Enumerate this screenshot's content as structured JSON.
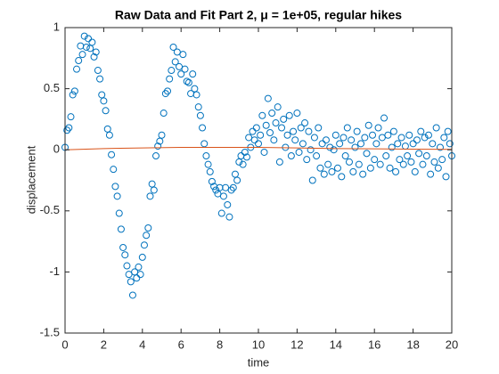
{
  "chart_data": {
    "type": "scatter",
    "title": "Raw Data and Fit Part 2, μ = 1e+05, regular hikes",
    "x_label": "time",
    "y_label": "displacement",
    "xlim": [
      0,
      20
    ],
    "ylim": [
      -1.5,
      1
    ],
    "xticks": [
      0,
      2,
      4,
      6,
      8,
      10,
      12,
      14,
      16,
      18,
      20
    ],
    "yticks": [
      -1.5,
      -1,
      -0.5,
      0,
      0.5,
      1
    ],
    "box": true,
    "series": [
      {
        "mode": "markers",
        "color": "#0072bd",
        "x": [
          0,
          0.1,
          0.2,
          0.3,
          0.4,
          0.5,
          0.6,
          0.7,
          0.8,
          0.9,
          1,
          1.1,
          1.2,
          1.3,
          1.4,
          1.5,
          1.6,
          1.7,
          1.8,
          1.9,
          2,
          2.1,
          2.2,
          2.3,
          2.4,
          2.5,
          2.6,
          2.7,
          2.8,
          2.9,
          3,
          3.1,
          3.2,
          3.3,
          3.4,
          3.5,
          3.6,
          3.7,
          3.8,
          3.9,
          4,
          4.1,
          4.2,
          4.3,
          4.4,
          4.5,
          4.6,
          4.7,
          4.8,
          4.9,
          5,
          5.1,
          5.2,
          5.3,
          5.4,
          5.5,
          5.6,
          5.7,
          5.8,
          5.9,
          6,
          6.1,
          6.2,
          6.3,
          6.4,
          6.5,
          6.6,
          6.7,
          6.8,
          6.9,
          7,
          7.1,
          7.2,
          7.3,
          7.4,
          7.5,
          7.6,
          7.7,
          7.8,
          7.9,
          8,
          8.1,
          8.2,
          8.3,
          8.4,
          8.5,
          8.6,
          8.7,
          8.8,
          8.9,
          9,
          9.1,
          9.2,
          9.3,
          9.4,
          9.5,
          9.6,
          9.7,
          9.8,
          9.9,
          10,
          10.1,
          10.2,
          10.3,
          10.4,
          10.5,
          10.6,
          10.7,
          10.8,
          10.9,
          11,
          11.1,
          11.2,
          11.3,
          11.4,
          11.5,
          11.6,
          11.7,
          11.8,
          11.9,
          12,
          12.1,
          12.2,
          12.3,
          12.4,
          12.5,
          12.6,
          12.7,
          12.8,
          12.9,
          13,
          13.1,
          13.2,
          13.3,
          13.4,
          13.5,
          13.6,
          13.7,
          13.8,
          13.9,
          14,
          14.1,
          14.2,
          14.3,
          14.4,
          14.5,
          14.6,
          14.7,
          14.8,
          14.9,
          15,
          15.1,
          15.2,
          15.3,
          15.4,
          15.5,
          15.6,
          15.7,
          15.8,
          15.9,
          16,
          16.1,
          16.2,
          16.3,
          16.4,
          16.5,
          16.6,
          16.7,
          16.8,
          16.9,
          17,
          17.1,
          17.2,
          17.3,
          17.4,
          17.5,
          17.6,
          17.7,
          17.8,
          17.9,
          18,
          18.1,
          18.2,
          18.3,
          18.4,
          18.5,
          18.6,
          18.7,
          18.8,
          18.9,
          19,
          19.1,
          19.2,
          19.3,
          19.4,
          19.5,
          19.6,
          19.7,
          19.8,
          19.9,
          20
        ],
        "values": [
          0.02,
          0.16,
          0.18,
          0.27,
          0.45,
          0.48,
          0.66,
          0.73,
          0.85,
          0.78,
          0.93,
          0.84,
          0.91,
          0.83,
          0.88,
          0.76,
          0.8,
          0.65,
          0.58,
          0.45,
          0.4,
          0.32,
          0.17,
          0.12,
          -0.04,
          -0.16,
          -0.3,
          -0.38,
          -0.52,
          -0.65,
          -0.8,
          -0.86,
          -0.95,
          -1.02,
          -1.08,
          -1.19,
          -1,
          -1.05,
          -0.96,
          -1.02,
          -0.88,
          -0.78,
          -0.7,
          -0.64,
          -0.38,
          -0.28,
          -0.33,
          -0.05,
          0.03,
          0.07,
          0.12,
          0.3,
          0.46,
          0.48,
          0.58,
          0.65,
          0.84,
          0.72,
          0.8,
          0.68,
          0.62,
          0.78,
          0.66,
          0.56,
          0.55,
          0.46,
          0.62,
          0.5,
          0.45,
          0.35,
          0.28,
          0.18,
          0.05,
          -0.05,
          -0.12,
          -0.18,
          -0.26,
          -0.3,
          -0.33,
          -0.36,
          -0.31,
          -0.52,
          -0.38,
          -0.31,
          -0.45,
          -0.55,
          -0.33,
          -0.31,
          -0.2,
          -0.25,
          -0.1,
          -0.05,
          -0.12,
          -0.02,
          -0.06,
          0.1,
          0.02,
          0.15,
          0.08,
          0.18,
          0.05,
          0.12,
          0.28,
          -0.02,
          0.2,
          0.42,
          0.14,
          0.3,
          0.08,
          0.22,
          0.35,
          -0.1,
          0.18,
          0.25,
          0.02,
          0.12,
          0.28,
          -0.05,
          0.15,
          0.08,
          0.3,
          -0.02,
          0.18,
          0.05,
          0.22,
          -0.08,
          0.15,
          0,
          -0.25,
          0.1,
          -0.05,
          0.18,
          -0.15,
          0.05,
          -0.2,
          0.08,
          -0.12,
          0.02,
          -0.18,
          0,
          0.12,
          -0.15,
          0.05,
          -0.22,
          0.1,
          -0.05,
          0.18,
          -0.1,
          0.08,
          -0.18,
          0.02,
          0.15,
          -0.12,
          0.05,
          -0.2,
          0.1,
          -0.03,
          0.2,
          -0.15,
          0.12,
          -0.08,
          0.05,
          0.18,
          -0.12,
          0.1,
          0.26,
          -0.05,
          0.12,
          -0.15,
          0.02,
          0.15,
          -0.18,
          0.05,
          -0.08,
          0.1,
          -0.12,
          0.03,
          -0.05,
          0.12,
          -0.1,
          0.05,
          -0.18,
          0.08,
          -0.03,
          0.15,
          -0.12,
          0.1,
          -0.05,
          0.12,
          -0.2,
          0.05,
          -0.1,
          0.18,
          -0.15,
          0.02,
          -0.08,
          0.1,
          -0.22,
          0.15,
          0.05,
          -0.05
        ]
      },
      {
        "mode": "line",
        "color": "#d95319",
        "x": [
          0,
          2,
          4,
          6,
          8,
          10,
          12,
          14,
          16,
          18,
          20
        ],
        "values": [
          0,
          0.01,
          0.015,
          0.02,
          0.02,
          0.02,
          0.015,
          0.01,
          0.008,
          0.005,
          0.003
        ]
      }
    ]
  }
}
